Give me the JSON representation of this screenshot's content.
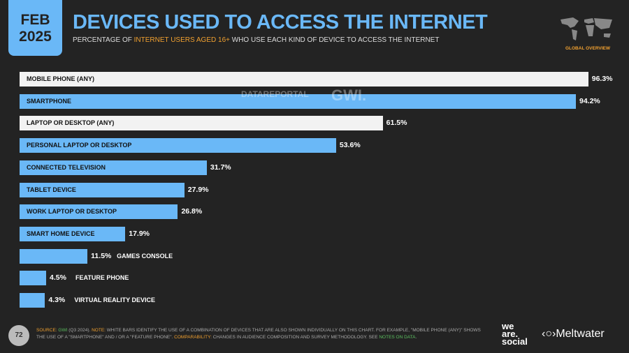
{
  "header": {
    "date_month": "FEB",
    "date_year": "2025",
    "title": "DEVICES USED TO ACCESS THE INTERNET",
    "subtitle_pre": "PERCENTAGE OF ",
    "subtitle_hl": "INTERNET USERS AGED 16+",
    "subtitle_post": " WHO USE EACH KIND OF DEVICE TO ACCESS THE INTERNET",
    "section": "GLOBAL OVERVIEW"
  },
  "watermark": {
    "left": "DATAREPORTAL",
    "right": "GWI."
  },
  "chart_data": {
    "type": "bar",
    "orientation": "horizontal",
    "xlim": [
      0,
      100
    ],
    "categories": [
      "MOBILE PHONE (ANY)",
      "SMARTPHONE",
      "LAPTOP OR DESKTOP (ANY)",
      "PERSONAL LAPTOP OR DESKTOP",
      "CONNECTED TELEVISION",
      "TABLET DEVICE",
      "WORK LAPTOP OR DESKTOP",
      "SMART HOME DEVICE",
      "GAMES CONSOLE",
      "FEATURE PHONE",
      "VIRTUAL REALITY DEVICE"
    ],
    "values": [
      96.3,
      94.2,
      61.5,
      53.6,
      31.7,
      27.9,
      26.8,
      17.9,
      11.5,
      4.5,
      4.3
    ],
    "value_labels": [
      "96.3%",
      "94.2%",
      "61.5%",
      "53.6%",
      "31.7%",
      "27.9%",
      "26.8%",
      "17.9%",
      "11.5%",
      "4.5%",
      "4.3%"
    ],
    "bar_colors": [
      "#f2f2f2",
      "#6ab8f7",
      "#f2f2f2",
      "#6ab8f7",
      "#6ab8f7",
      "#6ab8f7",
      "#6ab8f7",
      "#6ab8f7",
      "#6ab8f7",
      "#6ab8f7",
      "#6ab8f7"
    ]
  },
  "footer": {
    "page": "72",
    "source_label": "SOURCE: ",
    "source": "GWI",
    "source_rest": " (Q3 2024). ",
    "note_label": "NOTE: ",
    "note": "WHITE BARS IDENTIFY THE USE OF A COMBINATION OF DEVICES THAT ARE ALSO SHOWN INDIVIDUALLY ON THIS CHART. FOR EXAMPLE, \"MOBILE PHONE (ANY)\" SHOWS THE USE OF A \"SMARTPHONE\" AND / OR A \"FEATURE PHONE\". ",
    "comp_label": "COMPARABILITY: ",
    "comp": "CHANGES IN AUDIENCE COMPOSITION AND SURVEY METHODOLOGY. SEE ",
    "notes_link": "NOTES ON DATA",
    "end": "."
  },
  "brands": {
    "was1": "we",
    "was2": "are.",
    "was3": "social",
    "meltwater": "Meltwater"
  }
}
